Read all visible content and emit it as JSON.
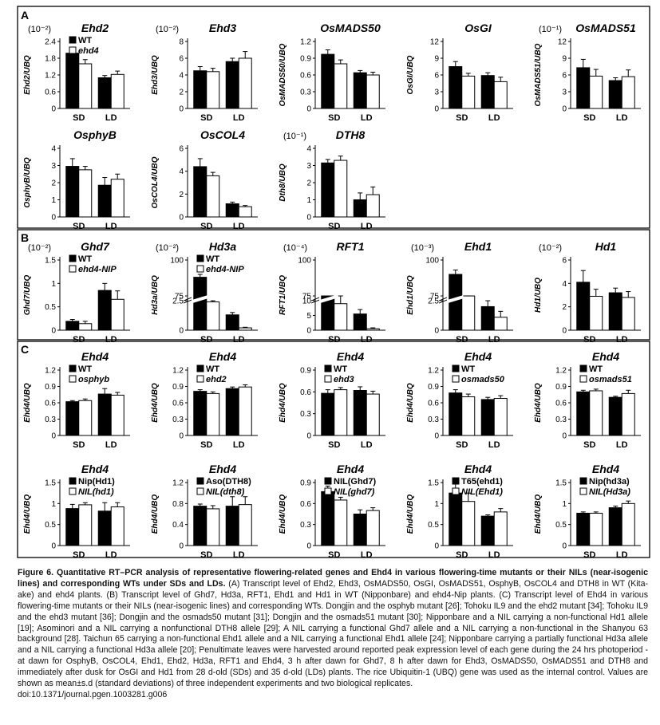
{
  "panels": [
    {
      "label": "A",
      "charts": [
        {
          "title": "Ehd2",
          "exp": "(10⁻²)",
          "ylabel": "Ehd2/UBQ",
          "ylim": [
            0,
            2.4
          ],
          "ticks": [
            "0",
            "0.6",
            "1.2",
            "1.8",
            "2.4"
          ],
          "legend": [
            "WT",
            "ehd4"
          ],
          "groups": [
            "SD",
            "LD"
          ],
          "wt": [
            1.98,
            1.1
          ],
          "mut": [
            1.6,
            1.22
          ],
          "wt_err": [
            0.18,
            0.08
          ],
          "mut_err": [
            0.15,
            0.12
          ]
        },
        {
          "title": "Ehd3",
          "exp": "(10⁻²)",
          "ylabel": "Ehd3/UBQ",
          "ylim": [
            0,
            8
          ],
          "ticks": [
            "0",
            "2",
            "4",
            "6",
            "8"
          ],
          "groups": [
            "SD",
            "LD"
          ],
          "wt": [
            4.5,
            5.6
          ],
          "mut": [
            4.4,
            6.0
          ],
          "wt_err": [
            0.5,
            0.4
          ],
          "mut_err": [
            0.4,
            0.8
          ]
        },
        {
          "title": "OsMADS50",
          "ylabel": "OsMADS50/UBQ",
          "ylim": [
            0,
            1.2
          ],
          "ticks": [
            "0",
            "0.3",
            "0.6",
            "0.9",
            "1.2"
          ],
          "groups": [
            "SD",
            "LD"
          ],
          "wt": [
            0.97,
            0.64
          ],
          "mut": [
            0.8,
            0.6
          ],
          "wt_err": [
            0.08,
            0.04
          ],
          "mut_err": [
            0.07,
            0.05
          ]
        },
        {
          "title": "OsGI",
          "ylabel": "OsGI/UBQ",
          "ylim": [
            0,
            12
          ],
          "ticks": [
            "0",
            "3",
            "6",
            "9",
            "12"
          ],
          "groups": [
            "SD",
            "LD"
          ],
          "wt": [
            7.5,
            5.9
          ],
          "mut": [
            5.8,
            4.8
          ],
          "wt_err": [
            0.9,
            0.5
          ],
          "mut_err": [
            0.5,
            0.8
          ]
        },
        {
          "title": "OsMADS51",
          "exp": "(10⁻¹)",
          "ylabel": "OsMADS51/UBQ",
          "ylim": [
            0,
            12
          ],
          "ticks": [
            "0",
            "3",
            "6",
            "9",
            "12"
          ],
          "groups": [
            "SD",
            "LD"
          ],
          "wt": [
            7.3,
            5.0
          ],
          "mut": [
            5.8,
            5.7
          ],
          "wt_err": [
            1.5,
            0.5
          ],
          "mut_err": [
            1.2,
            1.2
          ]
        },
        {
          "title": "OsphyB",
          "ylabel": "OsphyB/UBQ",
          "ylim": [
            0,
            4
          ],
          "ticks": [
            "0",
            "1",
            "2",
            "3",
            "4"
          ],
          "groups": [
            "SD",
            "LD"
          ],
          "wt": [
            2.95,
            1.85
          ],
          "mut": [
            2.75,
            2.2
          ],
          "wt_err": [
            0.45,
            0.45
          ],
          "mut_err": [
            0.2,
            0.3
          ]
        },
        {
          "title": "OsCOL4",
          "ylabel": "OsCOL4/UBQ",
          "ylim": [
            0,
            6
          ],
          "ticks": [
            "0",
            "2",
            "4",
            "6"
          ],
          "groups": [
            "SD",
            "LD"
          ],
          "wt": [
            4.4,
            1.15
          ],
          "mut": [
            3.6,
            0.9
          ],
          "wt_err": [
            0.7,
            0.15
          ],
          "mut_err": [
            0.3,
            0.1
          ]
        },
        {
          "title": "DTH8",
          "exp": "(10⁻¹)",
          "ylabel": "Dth8/UBQ",
          "ylim": [
            0,
            4
          ],
          "ticks": [
            "0",
            "1",
            "2",
            "3",
            "4"
          ],
          "groups": [
            "SD",
            "LD"
          ],
          "wt": [
            3.15,
            1.0
          ],
          "mut": [
            3.3,
            1.3
          ],
          "wt_err": [
            0.2,
            0.4
          ],
          "mut_err": [
            0.25,
            0.45
          ]
        }
      ]
    },
    {
      "label": "B",
      "charts": [
        {
          "title": "Ghd7",
          "exp": "(10⁻²)",
          "ylabel": "Ghd7/UBQ",
          "ylim": [
            0,
            1.5
          ],
          "ticks": [
            "0",
            "0.5",
            "1",
            "1.5"
          ],
          "legend": [
            "WT",
            "ehd4-NIP"
          ],
          "groups": [
            "SD",
            "LD"
          ],
          "wt": [
            0.19,
            0.85
          ],
          "mut": [
            0.14,
            0.66
          ],
          "wt_err": [
            0.04,
            0.15
          ],
          "mut_err": [
            0.05,
            0.18
          ]
        },
        {
          "title": "Hd3a",
          "exp": "(10⁻²)",
          "ylabel": "Hd3a/UBQ",
          "ticks": [
            "0",
            "2.5",
            "75",
            "100"
          ],
          "legend": [
            "WT",
            "ehd4-NIP"
          ],
          "groups": [
            "SD",
            "LD"
          ],
          "wt": [
            88,
            1.3
          ],
          "mut": [
            2.4,
            0.2
          ],
          "wt_err": [
            2,
            0.2
          ],
          "mut_err": [
            0.1,
            0.05
          ]
        },
        {
          "title": "RFT1",
          "exp": "(10⁻⁴)",
          "ylabel": "RFT1/UBQ",
          "ticks": [
            "0",
            "5",
            "10",
            "75",
            "100"
          ],
          "groups": [
            "SD",
            "LD"
          ],
          "wt": [
            70,
            5.5
          ],
          "mut": [
            9,
            0.5
          ],
          "wt_err": [
            4,
            1.5
          ],
          "mut_err": [
            2.5,
            0.3
          ]
        },
        {
          "title": "Ehd1",
          "exp": "(10⁻³)",
          "ylabel": "Ehd1/UBQ",
          "ticks": [
            "0",
            "2.5",
            "75",
            "100"
          ],
          "groups": [
            "SD",
            "LD"
          ],
          "wt": [
            90,
            2.0
          ],
          "mut": [
            3.0,
            1.1
          ],
          "wt_err": [
            3,
            0.5
          ],
          "mut_err": [
            0.3,
            0.5
          ]
        },
        {
          "title": "Hd1",
          "exp": "(10⁻²)",
          "ylabel": "Hd1/UBQ",
          "ylim": [
            0,
            6
          ],
          "ticks": [
            "0",
            "2",
            "4",
            "6"
          ],
          "groups": [
            "SD",
            "LD"
          ],
          "wt": [
            4.1,
            3.2
          ],
          "mut": [
            2.9,
            2.8
          ],
          "wt_err": [
            1.0,
            0.4
          ],
          "mut_err": [
            0.6,
            0.5
          ]
        }
      ]
    },
    {
      "label": "C",
      "charts": [
        {
          "title": "Ehd4",
          "ylabel": "Ehd4/UBQ",
          "ylim": [
            0,
            1.2
          ],
          "ticks": [
            "0",
            "0.3",
            "0.6",
            "0.9",
            "1.2"
          ],
          "legend": [
            "WT",
            "osphyb"
          ],
          "groups": [
            "SD",
            "LD"
          ],
          "wt": [
            0.62,
            0.76
          ],
          "mut": [
            0.64,
            0.74
          ],
          "wt_err": [
            0.02,
            0.1
          ],
          "mut_err": [
            0.03,
            0.05
          ]
        },
        {
          "title": "Ehd4",
          "ylabel": "Ehd4/UBQ",
          "ylim": [
            0,
            1.2
          ],
          "ticks": [
            "0",
            "0.3",
            "0.6",
            "0.9",
            "1.2"
          ],
          "legend": [
            "WT",
            "ehd2"
          ],
          "groups": [
            "SD",
            "LD"
          ],
          "wt": [
            0.81,
            0.86
          ],
          "mut": [
            0.77,
            0.89
          ],
          "wt_err": [
            0.03,
            0.03
          ],
          "mut_err": [
            0.03,
            0.04
          ]
        },
        {
          "title": "Ehd4",
          "ylabel": "Ehd4/UBQ",
          "ylim": [
            0,
            0.9
          ],
          "ticks": [
            "0",
            "0.3",
            "0.6",
            "0.9"
          ],
          "legend": [
            "WT",
            "ehd3"
          ],
          "groups": [
            "SD",
            "LD"
          ],
          "wt": [
            0.58,
            0.62
          ],
          "mut": [
            0.63,
            0.57
          ],
          "wt_err": [
            0.05,
            0.05
          ],
          "mut_err": [
            0.03,
            0.04
          ]
        },
        {
          "title": "Ehd4",
          "ylabel": "Ehd4/UBQ",
          "ylim": [
            0,
            1.2
          ],
          "ticks": [
            "0",
            "0.3",
            "0.6",
            "0.9",
            "1.2"
          ],
          "legend": [
            "WT",
            "osmads50"
          ],
          "groups": [
            "SD",
            "LD"
          ],
          "wt": [
            0.78,
            0.66
          ],
          "mut": [
            0.71,
            0.68
          ],
          "wt_err": [
            0.06,
            0.04
          ],
          "mut_err": [
            0.05,
            0.05
          ]
        },
        {
          "title": "Ehd4",
          "ylabel": "Ehd4/UBQ",
          "ylim": [
            0,
            1.2
          ],
          "ticks": [
            "0",
            "0.3",
            "0.6",
            "0.9",
            "1.2"
          ],
          "legend": [
            "WT",
            "osmads51"
          ],
          "groups": [
            "SD",
            "LD"
          ],
          "wt": [
            0.8,
            0.7
          ],
          "mut": [
            0.82,
            0.77
          ],
          "wt_err": [
            0.03,
            0.02
          ],
          "mut_err": [
            0.03,
            0.06
          ]
        },
        {
          "title": "Ehd4",
          "ylabel": "Ehd4/UBQ",
          "ylim": [
            0,
            1.5
          ],
          "ticks": [
            "0",
            "0.5",
            "1",
            "1.5"
          ],
          "legend": [
            "Nip(Hd1)",
            "NIL(hd1)"
          ],
          "groups": [
            "SD",
            "LD"
          ],
          "wt": [
            0.88,
            0.82
          ],
          "mut": [
            0.97,
            0.92
          ],
          "wt_err": [
            0.1,
            0.2
          ],
          "mut_err": [
            0.05,
            0.1
          ]
        },
        {
          "title": "Ehd4",
          "ylabel": "Ehd4/UBQ",
          "ylim": [
            0,
            1.2
          ],
          "ticks": [
            "0",
            "0.4",
            "0.8",
            "1.2"
          ],
          "legend": [
            "Aso(DTH8)",
            "NIL(dth8)"
          ],
          "groups": [
            "SD",
            "LD"
          ],
          "wt": [
            0.75,
            0.75
          ],
          "mut": [
            0.7,
            0.78
          ],
          "wt_err": [
            0.04,
            0.18
          ],
          "mut_err": [
            0.06,
            0.15
          ]
        },
        {
          "title": "Ehd4",
          "ylabel": "Ehd4/UBQ",
          "ylim": [
            0,
            0.9
          ],
          "ticks": [
            "0",
            "0.3",
            "0.6",
            "0.9"
          ],
          "legend": [
            "NIL(Ghd7)",
            "NIL(ghd7)"
          ],
          "groups": [
            "SD",
            "LD"
          ],
          "wt": [
            0.77,
            0.45
          ],
          "mut": [
            0.65,
            0.5
          ],
          "wt_err": [
            0.08,
            0.06
          ],
          "mut_err": [
            0.04,
            0.04
          ]
        },
        {
          "title": "Ehd4",
          "ylabel": "Ehd4/UBQ",
          "ylim": [
            0,
            1.5
          ],
          "ticks": [
            "0",
            "0.5",
            "1",
            "1.5"
          ],
          "legend": [
            "T65(ehd1)",
            "NIL(Ehd1)"
          ],
          "groups": [
            "SD",
            "LD"
          ],
          "wt": [
            1.25,
            0.7
          ],
          "mut": [
            1.05,
            0.8
          ],
          "wt_err": [
            0.25,
            0.03
          ],
          "mut_err": [
            0.2,
            0.08
          ]
        },
        {
          "title": "Ehd4",
          "ylabel": "Ehd4/UBQ",
          "ylim": [
            0,
            1.5
          ],
          "ticks": [
            "0",
            "0.5",
            "1",
            "1.5"
          ],
          "legend": [
            "Nip(hd3a)",
            "NIL(Hd3a)"
          ],
          "groups": [
            "SD",
            "LD"
          ],
          "wt": [
            0.77,
            0.9
          ],
          "mut": [
            0.77,
            1.0
          ],
          "wt_err": [
            0.03,
            0.04
          ],
          "mut_err": [
            0.03,
            0.06
          ]
        }
      ]
    }
  ],
  "caption": {
    "bold": "Figure 6. Quantitative RT–PCR analysis of representative flowering-related genes and Ehd4 in various flowering-time mutants or their NILs (near-isogenic lines) and corresponding WTs under SDs and LDs.",
    "body": "(A) Transcript level of Ehd2, Ehd3, OsMADS50, OsGI, OsMADS51, OsphyB, OsCOL4 and DTH8 in WT (Kita-ake) and ehd4 plants. (B) Transcript level of Ghd7, Hd3a, RFT1, Ehd1 and Hd1 in WT (Nipponbare) and ehd4-Nip plants. (C) Transcript level of Ehd4 in various flowering-time mutants or their NILs (near-isogenic lines) and corresponding WTs. Dongjin and the osphyb mutant [26]; Tohoku IL9 and the ehd2 mutant [34]; Tohoku IL9 and the ehd3 mutant [36]; Dongjin and the osmads50 mutant [31]; Dongjin and the osmads51 mutant [30]; Nipponbare and a NIL carrying a non-functional Hd1 allele [19]; Asominori and a NIL carrying a nonfunctional DTH8 allele [29]; A NIL carrying a functional Ghd7 allele and a NIL carrying a non-functional in the Shanyou 63 background [28]. Taichun 65 carrying a non-functional Ehd1 allele and a NIL carrying a functional Ehd1 allele [24]; Nipponbare carrying a partially functional Hd3a allele and a NIL carrying a functional Hd3a allele [20]; Penultimate leaves were harvested around reported peak expression level of each gene during the 24 hrs photoperiod - at dawn for OsphyB, OsCOL4, Ehd1, Ehd2, Hd3a, RFT1 and Ehd4, 3 h after dawn for Ghd7, 8 h after dawn for Ehd3, OsMADS50, OsMADS51 and DTH8 and immediately after dusk for OsGI and Hd1 from 28 d-old (SDs) and 35 d-old (LDs) plants. The rice Ubiquitin-1 (UBQ) gene was used as the internal control. Values are shown as mean±s.d (standard deviations) of three independent experiments and two biological replicates.",
    "doi": "doi:10.1371/journal.pgen.1003281.g006"
  }
}
